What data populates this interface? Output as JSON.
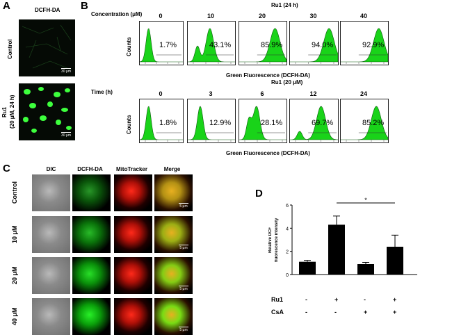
{
  "panel_a": {
    "letter": "A",
    "title": "DCFH-DA",
    "row_control": "Control",
    "row_ru1_line1": "Ru1",
    "row_ru1_line2": "(20 μM, 24 h)",
    "scale": "30 μm"
  },
  "panel_b": {
    "letter": "B",
    "top": {
      "title": "Ru1 (24 h)",
      "row_label": "Concentration (μM)",
      "headers": [
        "0",
        "10",
        "20",
        "30",
        "40"
      ],
      "percents": [
        "1.7%",
        "43.1%",
        "85.9%",
        "94.0%",
        "92.9%"
      ],
      "xlabel": "Green Fluorescence (DCFH-DA)",
      "ylabel": "Counts"
    },
    "bottom": {
      "title": "Ru1 (20 μM)",
      "row_label": "Time (h)",
      "headers": [
        "0",
        "3",
        "6",
        "12",
        "24"
      ],
      "percents": [
        "1.8%",
        "12.9%",
        "28.1%",
        "69.7%",
        "85.2%"
      ],
      "xlabel": "Green Fluorescence (DCFH-DA)",
      "ylabel": "Counts"
    },
    "fill_color": "#19d319"
  },
  "panel_c": {
    "letter": "C",
    "columns": [
      "DIC",
      "DCFH-DA",
      "MitoTracker",
      "Merge"
    ],
    "rows": [
      "Control",
      "10 μM",
      "20 μM",
      "40 μM"
    ],
    "scale": "5 μm"
  },
  "panel_d": {
    "letter": "D",
    "ylabel_line1": "Relative DCF",
    "ylabel_line2": "fluorescence intensity",
    "significance": "*",
    "row_labels": [
      "Ru1",
      "CsA"
    ],
    "ru1_signs": [
      "-",
      "+",
      "-",
      "+"
    ],
    "csa_signs": [
      "-",
      "-",
      "+",
      "+"
    ]
  },
  "chart_data": {
    "type": "bar",
    "categories": [
      "Ru1 - / CsA -",
      "Ru1 + / CsA -",
      "Ru1 - / CsA +",
      "Ru1 + / CsA +"
    ],
    "values": [
      1.1,
      4.3,
      0.9,
      2.4
    ],
    "errors": [
      0.12,
      0.75,
      0.15,
      1.0
    ],
    "ylabel": "Relative DCF fluorescence intensity",
    "ylim": [
      0,
      6
    ],
    "yticks": [
      "0",
      "2",
      "4",
      "6"
    ],
    "bar_color": "#000000"
  }
}
